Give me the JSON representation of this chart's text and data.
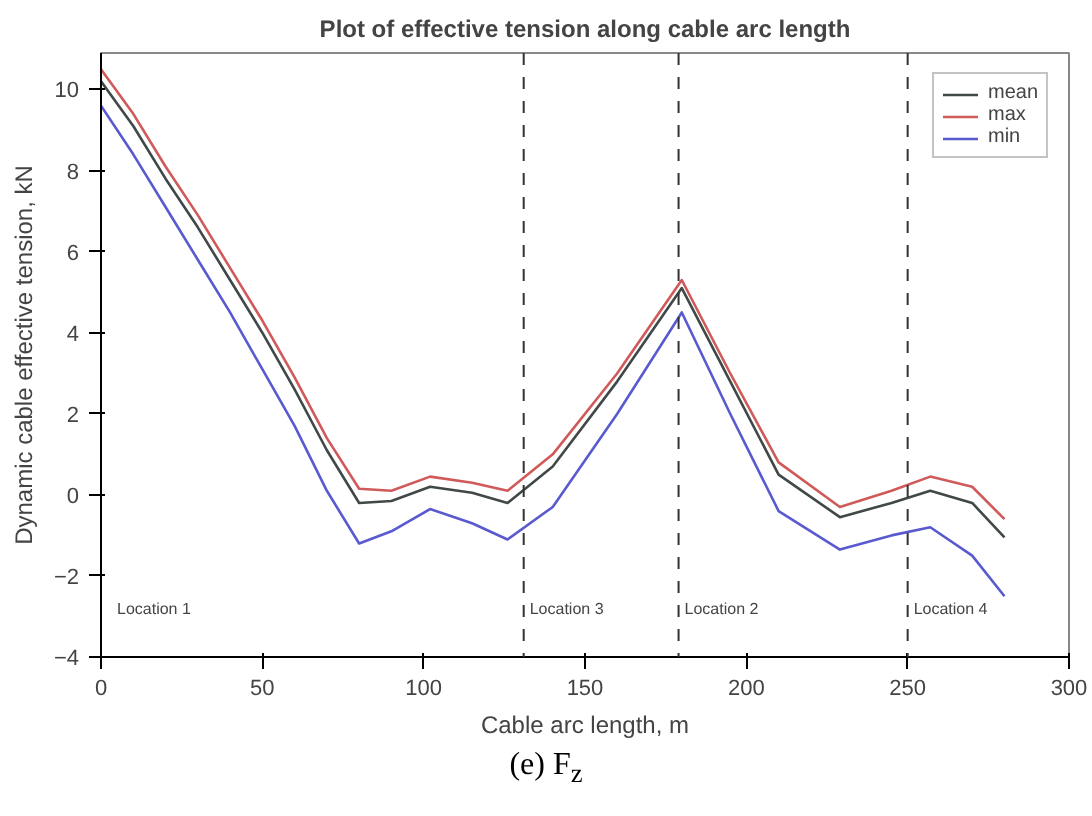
{
  "chart_data": {
    "type": "line",
    "title": "Plot of effective tension along cable arc length",
    "xlabel": "Cable arc length, m",
    "ylabel": "Dynamic cable effective tension, kN",
    "x": [
      0,
      10,
      20,
      30,
      40,
      50,
      60,
      70,
      80,
      90,
      102,
      115,
      126,
      140,
      160,
      180,
      195,
      210,
      229,
      245,
      257,
      270,
      280
    ],
    "series": [
      {
        "name": "mean",
        "color": "#404848",
        "values": [
          10.2,
          9.1,
          7.8,
          6.6,
          5.3,
          4.0,
          2.6,
          1.1,
          -0.2,
          -0.15,
          0.2,
          0.05,
          -0.2,
          0.7,
          2.8,
          5.1,
          2.8,
          0.5,
          -0.55,
          -0.2,
          0.1,
          -0.2,
          -1.05
        ]
      },
      {
        "name": "max",
        "color": "#d05a5a",
        "values": [
          10.5,
          9.4,
          8.1,
          6.9,
          5.6,
          4.3,
          2.9,
          1.4,
          0.15,
          0.1,
          0.45,
          0.3,
          0.1,
          1.0,
          3.0,
          5.3,
          3.0,
          0.8,
          -0.3,
          0.1,
          0.45,
          0.2,
          -0.6
        ]
      },
      {
        "name": "min",
        "color": "#5a5ad0",
        "values": [
          9.6,
          8.4,
          7.1,
          5.8,
          4.5,
          3.1,
          1.7,
          0.1,
          -1.2,
          -0.9,
          -0.35,
          -0.7,
          -1.1,
          -0.3,
          2.0,
          4.5,
          2.0,
          -0.4,
          -1.35,
          -1.0,
          -0.8,
          -1.5,
          -2.5
        ]
      }
    ],
    "xlim": [
      0,
      300
    ],
    "xticks": [
      0,
      50,
      100,
      150,
      200,
      250,
      300
    ],
    "ylim": [
      -4,
      10.9
    ],
    "yticks": [
      -4,
      -2,
      0,
      2,
      4,
      6,
      8,
      10
    ],
    "ref_lines": [
      {
        "axis": "x",
        "value": 131,
        "label": "Location 3",
        "color": "#333333",
        "line_style": "dashed"
      },
      {
        "axis": "x",
        "value": 179,
        "label": "Location 2",
        "color": "#333333",
        "line_style": "dashed"
      },
      {
        "axis": "x",
        "value": 250,
        "label": "Location 4",
        "color": "#333333",
        "line_style": "dashed"
      }
    ],
    "annotations": [
      "Location 1",
      "(e) F$_{z}$"
    ],
    "legend": "top right",
    "grid": false,
    "line_style": "solid",
    "marker": "none"
  }
}
